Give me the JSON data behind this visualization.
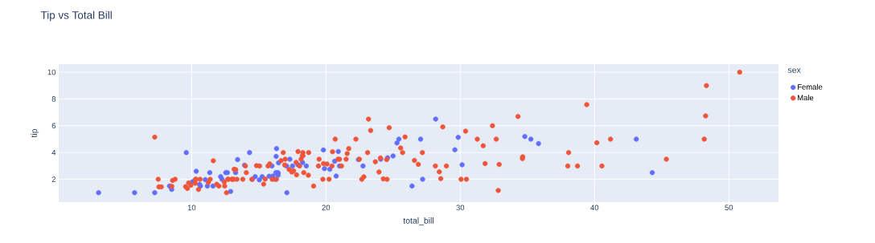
{
  "chart_data": {
    "type": "scatter",
    "title": "Tip vs Total Bill",
    "xlabel": "total_bill",
    "ylabel": "tip",
    "legend_title": "sex",
    "legend": "right",
    "grid": true,
    "marker": "circle",
    "xlim": [
      0.1,
      53.7
    ],
    "ylim": [
      0.3,
      10.6
    ],
    "xticks": [
      10,
      20,
      30,
      40,
      50
    ],
    "yticks": [
      2,
      4,
      6,
      8,
      10
    ],
    "series": [
      {
        "name": "Female",
        "color": "#636efa",
        "x": [
          3.07,
          5.75,
          7.25,
          8.35,
          8.51,
          9.6,
          10.07,
          10.34,
          10.65,
          10.59,
          11.02,
          11.17,
          11.35,
          11.59,
          12.16,
          12.26,
          12.66,
          12.54,
          12.9,
          13.27,
          13.42,
          13.94,
          14.31,
          14.52,
          14.73,
          15.04,
          15.25,
          15.77,
          15.98,
          16.04,
          16.21,
          16.27,
          16.43,
          16.45,
          16.4,
          16.32,
          16.29,
          16.47,
          17.07,
          17.09,
          17.31,
          17.51,
          18.26,
          17.92,
          18.54,
          19.81,
          19.89,
          20.29,
          20.65,
          21.01,
          20.76,
          20.92,
          22.42,
          22.76,
          24.08,
          24.59,
          25.29,
          25.0,
          25.43,
          26.41,
          27.05,
          27.2,
          28.17,
          29.85,
          29.6,
          30.14,
          34.81,
          35.26,
          35.83,
          43.11,
          44.3
        ],
        "values": [
          1,
          1,
          1,
          1.5,
          1.25,
          4,
          1.83,
          2.6,
          1.5,
          1.61,
          1.98,
          1.5,
          2.5,
          1.5,
          2.2,
          2,
          2.5,
          2.5,
          1.1,
          2.5,
          3.48,
          3.06,
          4,
          2,
          2.2,
          1.96,
          2.2,
          2.23,
          3,
          2.24,
          2,
          2.5,
          2.3,
          2.47,
          2.5,
          4.3,
          3.71,
          3.23,
          3,
          1,
          3.5,
          3,
          3.25,
          3.08,
          3,
          4.19,
          2.8,
          2.75,
          3.35,
          3,
          2.24,
          4.08,
          3.48,
          3,
          3.5,
          3.61,
          4.71,
          3.75,
          5,
          1.5,
          5,
          2,
          6.5,
          5.14,
          4.2,
          3.09,
          5.2,
          5,
          4.67,
          5,
          2.5
        ]
      },
      {
        "name": "Male",
        "color": "#ef553b",
        "x": [
          7.25,
          7.51,
          7.56,
          7.74,
          8.52,
          8.58,
          8.77,
          9.55,
          9.68,
          9.78,
          9.94,
          10.27,
          10.29,
          10.33,
          10.51,
          10.63,
          11.24,
          11.38,
          11.61,
          11.87,
          12.03,
          12.43,
          12.6,
          12.46,
          12.69,
          12.74,
          13.0,
          13.03,
          13.13,
          13.16,
          13.28,
          13.37,
          13.81,
          14.0,
          14.07,
          14.48,
          14.83,
          15.06,
          15.36,
          15.48,
          15.69,
          15.81,
          16.0,
          16.31,
          16.66,
          16.82,
          16.93,
          16.97,
          17.26,
          17.46,
          17.59,
          17.78,
          17.81,
          17.92,
          18.04,
          18.15,
          18.24,
          18.28,
          18.29,
          18.35,
          18.69,
          18.71,
          19.08,
          19.44,
          19.49,
          19.82,
          19.77,
          20.08,
          20.23,
          20.45,
          20.49,
          20.69,
          20.9,
          21.01,
          21.16,
          21.5,
          21.58,
          21.7,
          22.23,
          22.49,
          22.67,
          22.82,
          23.1,
          23.17,
          23.33,
          23.68,
          23.95,
          24.06,
          24.27,
          24.52,
          24.71,
          24.55,
          25.56,
          25.71,
          25.89,
          26.59,
          26.88,
          27.18,
          28.15,
          28.44,
          28.55,
          28.97,
          28.7,
          30.06,
          30.4,
          30.46,
          31.27,
          31.71,
          31.85,
          32.4,
          32.68,
          32.83,
          32.9,
          34.3,
          34.63,
          34.65,
          38.01,
          38.07,
          38.73,
          39.42,
          40.17,
          40.55,
          41.19,
          45.35,
          48.17,
          48.27,
          48.33,
          50.81
        ],
        "values": [
          5.15,
          2,
          1.44,
          1.44,
          1.48,
          1.92,
          2,
          1.45,
          1.32,
          1.73,
          1.56,
          1.71,
          2,
          2,
          1.25,
          2,
          1.76,
          2,
          3.39,
          1.63,
          1.5,
          1.8,
          1,
          1.5,
          2,
          2.01,
          2,
          2,
          2,
          2.75,
          2.72,
          2,
          2,
          3,
          2.5,
          2,
          3.02,
          3,
          1.64,
          2.02,
          3,
          3.16,
          2,
          2,
          3.4,
          4,
          3.07,
          3.5,
          2.74,
          2.54,
          2.64,
          3.27,
          2.34,
          4.08,
          3,
          3.5,
          3.76,
          4,
          3.76,
          2.5,
          2.31,
          4,
          1.5,
          3,
          3.51,
          3.18,
          2,
          3.15,
          2.01,
          3,
          4.06,
          5,
          3.5,
          3.5,
          3,
          3.5,
          3.92,
          4.3,
          5,
          3.5,
          2,
          2.18,
          4,
          6.5,
          5.65,
          3.31,
          2.55,
          3.6,
          2.03,
          3.48,
          5.85,
          2,
          4.34,
          4,
          5.16,
          3.41,
          3.12,
          4,
          3,
          2.56,
          2.05,
          3,
          5.92,
          2,
          5.6,
          2,
          5,
          4.5,
          3.18,
          6,
          5,
          1.17,
          3.11,
          6.7,
          3.55,
          3.68,
          3,
          4,
          3,
          7.58,
          4.73,
          3,
          5,
          3.5,
          5,
          6.73,
          9,
          10
        ]
      }
    ]
  }
}
